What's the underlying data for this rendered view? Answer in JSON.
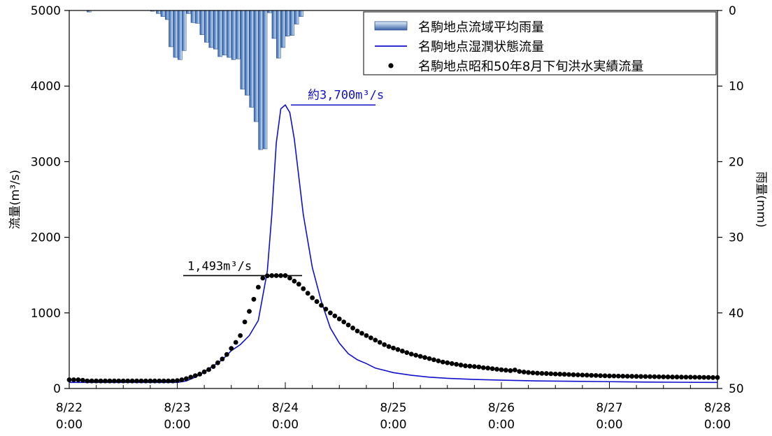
{
  "chart_data": {
    "type": "line",
    "left_axis": {
      "label": "流量(m³/s)",
      "ylim": [
        0,
        5000
      ],
      "ticks": [
        "0",
        "1000",
        "2000",
        "3000",
        "4000",
        "5000"
      ]
    },
    "right_axis": {
      "label": "雨量(mm)",
      "ylim": [
        0,
        50
      ],
      "inverted": true,
      "ticks": [
        "0",
        "10",
        "20",
        "30",
        "40",
        "50"
      ]
    },
    "x_axis": {
      "range_hours": [
        0,
        144
      ],
      "ticks": [
        {
          "date": "8/22",
          "time": "0:00"
        },
        {
          "date": "8/23",
          "time": "0:00"
        },
        {
          "date": "8/24",
          "time": "0:00"
        },
        {
          "date": "8/25",
          "time": "0:00"
        },
        {
          "date": "8/26",
          "time": "0:00"
        },
        {
          "date": "8/27",
          "time": "0:00"
        },
        {
          "date": "8/28",
          "time": "0:00"
        }
      ]
    },
    "legend": {
      "position": "top-right",
      "entries": [
        "名駒地点流域平均雨量",
        "名駒地点湿潤状態流量",
        "名駒地点昭和50年8月下旬洪水実績流量"
      ]
    },
    "annotations": [
      {
        "text": "約3,700m³/s",
        "color": "#1010cc"
      },
      {
        "text": "1,493m³/s",
        "color": "#000000"
      }
    ],
    "rainfall": {
      "name": "名駒地点流域平均雨量",
      "color": "#7fa8d8",
      "x": [
        4.4,
        18.5,
        19.8,
        20.8,
        21.8,
        22.6,
        23.6,
        24.6,
        25.5,
        26.5,
        27.5,
        28.5,
        29.5,
        30.5,
        31.5,
        32.5,
        33.5,
        34.5,
        35.5,
        36.5,
        37.5,
        38.5,
        39.5,
        40.5,
        41.5,
        42.5,
        43.5,
        44.5,
        45.5,
        46.5,
        47.5,
        48.5,
        49.5,
        50.5,
        51.5
      ],
      "values": [
        0.2,
        0.1,
        0.4,
        0.8,
        1.2,
        4.8,
        6.2,
        6.5,
        5.3,
        0.4,
        1.6,
        1.7,
        3.2,
        4.2,
        4.9,
        5.1,
        6.1,
        5.9,
        6.2,
        6.5,
        6.4,
        10.4,
        11.2,
        12.8,
        14.7,
        18.4,
        18.3,
        0.3,
        3.7,
        6.3,
        4.9,
        3.4,
        3.3,
        1.8,
        0.8
      ]
    },
    "wet_flow": {
      "name": "名駒地点湿潤状態流量",
      "color": "#1010cc",
      "x": [
        0,
        24,
        26,
        28,
        30,
        32,
        34,
        36,
        38,
        40,
        42,
        44,
        45,
        46,
        47,
        48,
        49,
        50,
        52,
        54,
        56,
        58,
        60,
        62,
        64,
        66,
        68,
        70,
        72,
        76,
        80,
        84,
        90,
        96,
        104,
        112,
        120,
        128,
        136,
        144
      ],
      "values": [
        80,
        80,
        100,
        150,
        220,
        300,
        380,
        500,
        580,
        700,
        900,
        1550,
        2300,
        3250,
        3700,
        3750,
        3650,
        3300,
        2300,
        1600,
        1150,
        800,
        600,
        460,
        380,
        330,
        270,
        240,
        210,
        175,
        150,
        135,
        120,
        110,
        100,
        95,
        90,
        85,
        82,
        80
      ]
    },
    "observed_flow": {
      "name": "名駒地点昭和50年8月下旬洪水実績流量",
      "color": "#000000",
      "x": [
        0,
        1,
        2,
        3,
        4,
        5,
        6,
        7,
        8,
        9,
        10,
        11,
        12,
        13,
        14,
        15,
        16,
        17,
        18,
        19,
        20,
        21,
        22,
        23,
        24,
        25,
        26,
        27,
        28,
        29,
        30,
        31,
        32,
        33,
        34,
        35,
        36,
        37,
        38,
        39,
        40,
        41,
        42,
        43,
        44,
        45,
        46,
        47,
        48,
        49,
        50,
        51,
        52,
        53,
        54,
        55,
        56,
        57,
        58,
        59,
        60,
        61,
        62,
        63,
        64,
        65,
        66,
        67,
        68,
        69,
        70,
        71,
        72,
        73,
        74,
        75,
        76,
        77,
        78,
        79,
        80,
        81,
        82,
        83,
        84,
        85,
        86,
        87,
        88,
        89,
        90,
        91,
        92,
        93,
        94,
        95,
        96,
        97,
        98,
        99,
        100,
        101,
        102,
        103,
        104,
        105,
        106,
        107,
        108,
        109,
        110,
        111,
        112,
        113,
        114,
        115,
        116,
        117,
        118,
        119,
        120,
        121,
        122,
        123,
        124,
        125,
        126,
        127,
        128,
        129,
        130,
        131,
        132,
        133,
        134,
        135,
        136,
        137,
        138,
        139,
        140,
        141,
        142,
        143,
        144
      ],
      "values": [
        115,
        115,
        115,
        110,
        100,
        100,
        100,
        100,
        100,
        100,
        100,
        100,
        100,
        100,
        100,
        100,
        100,
        100,
        100,
        100,
        100,
        100,
        100,
        100,
        105,
        115,
        130,
        150,
        170,
        190,
        220,
        250,
        290,
        340,
        390,
        450,
        530,
        610,
        700,
        880,
        1020,
        1180,
        1340,
        1460,
        1490,
        1493,
        1493,
        1493,
        1493,
        1460,
        1420,
        1380,
        1320,
        1260,
        1200,
        1150,
        1100,
        1050,
        1000,
        960,
        920,
        880,
        840,
        800,
        760,
        730,
        700,
        670,
        640,
        610,
        580,
        555,
        535,
        515,
        495,
        475,
        455,
        440,
        425,
        410,
        395,
        380,
        365,
        350,
        340,
        330,
        320,
        310,
        300,
        295,
        290,
        285,
        275,
        270,
        262,
        255,
        248,
        242,
        236,
        245,
        225,
        218,
        212,
        207,
        203,
        200,
        198,
        195,
        192,
        190,
        188,
        185,
        182,
        180,
        178,
        176,
        174,
        172,
        170,
        168,
        166,
        165,
        164,
        163,
        162,
        161,
        160,
        159,
        158,
        157,
        156,
        155,
        154,
        153,
        152,
        152,
        151,
        150,
        150,
        149,
        148,
        147,
        146,
        145,
        145
      ]
    }
  }
}
